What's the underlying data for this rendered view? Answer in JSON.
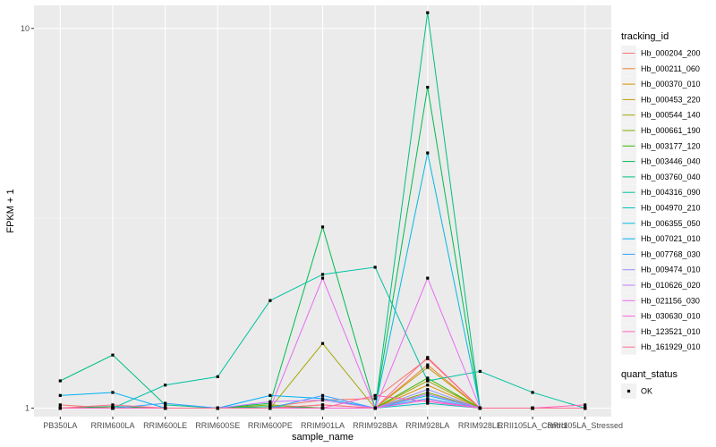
{
  "chart_data": {
    "type": "line",
    "xlabel": "sample_name",
    "ylabel": "FPKM + 1",
    "y_scale": "log10",
    "ylim": [
      0.95,
      11.5
    ],
    "grid": true,
    "legend_position": "right",
    "categories": [
      "PB350LA",
      "RRIM600LA",
      "RRIM600LE",
      "RRIM600SE",
      "RRIM600PE",
      "RRIM901LA",
      "RRIM928BA",
      "RRIM928LA",
      "RRIM928LE",
      "RRII105LA_Control",
      "RRII105LA_Stressed"
    ],
    "y_ticks": [
      1,
      10
    ],
    "y_tick_labels": [
      "1",
      "10"
    ],
    "legend": {
      "color_title": "tracking_id",
      "shape_title": "quant_status",
      "shape_entries": [
        "OK"
      ]
    },
    "series": [
      {
        "name": "Hb_000204_200",
        "color": "#F8766D",
        "values": [
          1.02,
          1.0,
          1.0,
          1.0,
          1.01,
          1.05,
          1.06,
          1.35,
          1.0,
          1.0,
          1.0
        ]
      },
      {
        "name": "Hb_000211_060",
        "color": "#EA8331",
        "values": [
          1.0,
          1.0,
          1.0,
          1.0,
          1.0,
          1.02,
          1.0,
          1.3,
          1.0,
          1.0,
          1.0
        ]
      },
      {
        "name": "Hb_000370_010",
        "color": "#D89000",
        "values": [
          1.0,
          1.0,
          1.0,
          1.0,
          1.0,
          1.0,
          1.0,
          1.15,
          1.0,
          1.0,
          1.0
        ]
      },
      {
        "name": "Hb_000453_220",
        "color": "#C09B00",
        "values": [
          1.0,
          1.0,
          1.0,
          1.0,
          1.0,
          1.0,
          1.0,
          1.28,
          1.0,
          1.0,
          1.0
        ]
      },
      {
        "name": "Hb_000544_140",
        "color": "#A3A500",
        "values": [
          1.0,
          1.0,
          1.0,
          1.0,
          1.0,
          1.48,
          1.0,
          1.18,
          1.0,
          1.0,
          1.0
        ]
      },
      {
        "name": "Hb_000661_190",
        "color": "#7CAE00",
        "values": [
          1.0,
          1.0,
          1.0,
          1.0,
          1.02,
          1.0,
          1.0,
          1.1,
          1.0,
          1.0,
          1.0
        ]
      },
      {
        "name": "Hb_003177_120",
        "color": "#39B600",
        "values": [
          1.0,
          1.0,
          1.0,
          1.0,
          1.0,
          1.0,
          1.0,
          1.2,
          1.0,
          1.0,
          1.0
        ]
      },
      {
        "name": "Hb_003446_040",
        "color": "#00BB4E",
        "values": [
          1.0,
          1.01,
          1.0,
          1.0,
          1.03,
          3.0,
          1.0,
          7.0,
          1.0,
          1.0,
          1.0
        ]
      },
      {
        "name": "Hb_003760_040",
        "color": "#00BF7D",
        "values": [
          1.18,
          1.38,
          1.02,
          1.0,
          1.01,
          1.0,
          1.0,
          11.0,
          1.0,
          1.0,
          1.0
        ]
      },
      {
        "name": "Hb_004316_090",
        "color": "#00C1A3",
        "values": [
          1.0,
          1.0,
          1.15,
          1.21,
          1.92,
          2.25,
          2.35,
          1.18,
          1.25,
          1.1,
          1.0
        ]
      },
      {
        "name": "Hb_004970_210",
        "color": "#00BFC4",
        "values": [
          1.0,
          1.0,
          1.0,
          1.0,
          1.0,
          1.0,
          1.0,
          1.03,
          1.0,
          1.0,
          1.0
        ]
      },
      {
        "name": "Hb_006355_050",
        "color": "#00BAE0",
        "values": [
          1.0,
          1.0,
          1.0,
          1.0,
          1.0,
          1.0,
          1.0,
          4.7,
          1.0,
          1.0,
          1.0
        ]
      },
      {
        "name": "Hb_007021_010",
        "color": "#00B0F6",
        "values": [
          1.08,
          1.1,
          1.0,
          1.0,
          1.08,
          1.06,
          1.0,
          1.08,
          1.0,
          1.0,
          1.0
        ]
      },
      {
        "name": "Hb_007768_030",
        "color": "#35A2FF",
        "values": [
          1.0,
          1.0,
          1.03,
          1.0,
          1.0,
          1.08,
          1.0,
          1.06,
          1.0,
          1.0,
          1.0
        ]
      },
      {
        "name": "Hb_009474_010",
        "color": "#9590FF",
        "values": [
          1.0,
          1.0,
          1.0,
          1.0,
          1.0,
          1.0,
          1.0,
          1.12,
          1.0,
          1.0,
          1.0
        ]
      },
      {
        "name": "Hb_010626_020",
        "color": "#C77CFF",
        "values": [
          1.0,
          1.0,
          1.0,
          1.0,
          1.04,
          1.05,
          1.0,
          1.09,
          1.0,
          1.0,
          1.0
        ]
      },
      {
        "name": "Hb_021156_030",
        "color": "#E76BF3",
        "values": [
          1.0,
          1.0,
          1.0,
          1.0,
          1.0,
          2.2,
          1.0,
          2.2,
          1.0,
          1.0,
          1.0
        ]
      },
      {
        "name": "Hb_030630_010",
        "color": "#FA62DB",
        "values": [
          1.0,
          1.0,
          1.0,
          1.0,
          1.0,
          1.0,
          1.0,
          1.05,
          1.0,
          1.0,
          1.0
        ]
      },
      {
        "name": "Hb_123521_010",
        "color": "#FF62BC",
        "values": [
          1.0,
          1.0,
          1.0,
          1.0,
          1.0,
          1.0,
          1.08,
          1.04,
          1.0,
          1.0,
          1.02
        ]
      },
      {
        "name": "Hb_161929_010",
        "color": "#FF6C91",
        "values": [
          1.0,
          1.02,
          1.0,
          1.0,
          1.0,
          1.02,
          1.0,
          1.36,
          1.0,
          1.0,
          1.0
        ]
      }
    ]
  }
}
